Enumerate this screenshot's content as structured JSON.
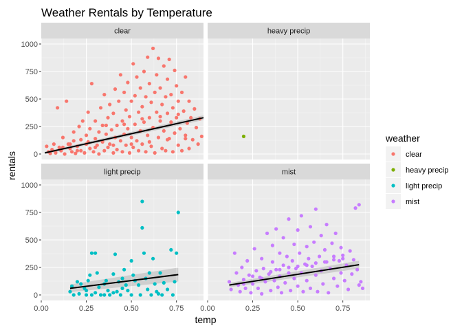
{
  "chart_data": {
    "type": "scatter",
    "title": "Weather Rentals by Temperature",
    "xlabel": "temp",
    "ylabel": "rentals",
    "xlim": [
      0.0,
      0.9
    ],
    "ylim": [
      -50,
      1050
    ],
    "x_ticks": [
      0.0,
      0.25,
      0.5,
      0.75
    ],
    "x_tick_labels": [
      "0.00",
      "0.25",
      "0.50",
      "0.75"
    ],
    "y_ticks": [
      0,
      250,
      500,
      750,
      1000
    ],
    "y_tick_labels": [
      "0",
      "250",
      "500",
      "750",
      "1000"
    ],
    "grid": true,
    "legend": {
      "title": "weather",
      "position": "right"
    },
    "facets": [
      {
        "label": "clear",
        "color": "#F8766D",
        "trend": {
          "x1": 0.02,
          "y1": 10,
          "x2": 0.9,
          "y2": 330,
          "band": 12
        },
        "points": [
          [
            0.03,
            70
          ],
          [
            0.04,
            20
          ],
          [
            0.05,
            5
          ],
          [
            0.06,
            40
          ],
          [
            0.07,
            90
          ],
          [
            0.08,
            10
          ],
          [
            0.09,
            420
          ],
          [
            0.1,
            60
          ],
          [
            0.11,
            30
          ],
          [
            0.12,
            150
          ],
          [
            0.13,
            0
          ],
          [
            0.14,
            480
          ],
          [
            0.15,
            90
          ],
          [
            0.16,
            50
          ],
          [
            0.17,
            20
          ],
          [
            0.18,
            120
          ],
          [
            0.18,
            200
          ],
          [
            0.19,
            5
          ],
          [
            0.2,
            70
          ],
          [
            0.21,
            250
          ],
          [
            0.22,
            30
          ],
          [
            0.22,
            130
          ],
          [
            0.23,
            300
          ],
          [
            0.24,
            10
          ],
          [
            0.25,
            170
          ],
          [
            0.25,
            90
          ],
          [
            0.26,
            380
          ],
          [
            0.27,
            50
          ],
          [
            0.27,
            230
          ],
          [
            0.28,
            640
          ],
          [
            0.29,
            20
          ],
          [
            0.3,
            140
          ],
          [
            0.3,
            300
          ],
          [
            0.31,
            80
          ],
          [
            0.32,
            200
          ],
          [
            0.32,
            0
          ],
          [
            0.33,
            420
          ],
          [
            0.34,
            110
          ],
          [
            0.34,
            260
          ],
          [
            0.35,
            30
          ],
          [
            0.35,
            540
          ],
          [
            0.36,
            180
          ],
          [
            0.37,
            60
          ],
          [
            0.37,
            330
          ],
          [
            0.38,
            90
          ],
          [
            0.38,
            450
          ],
          [
            0.39,
            220
          ],
          [
            0.4,
            10
          ],
          [
            0.4,
            370
          ],
          [
            0.41,
            150
          ],
          [
            0.41,
            590
          ],
          [
            0.42,
            40
          ],
          [
            0.42,
            260
          ],
          [
            0.43,
            480
          ],
          [
            0.44,
            120
          ],
          [
            0.44,
            720
          ],
          [
            0.45,
            300
          ],
          [
            0.45,
            20
          ],
          [
            0.46,
            180
          ],
          [
            0.46,
            560
          ],
          [
            0.47,
            80
          ],
          [
            0.47,
            400
          ],
          [
            0.48,
            230
          ],
          [
            0.48,
            650
          ],
          [
            0.49,
            10
          ],
          [
            0.49,
            340
          ],
          [
            0.5,
            150
          ],
          [
            0.5,
            480
          ],
          [
            0.51,
            820
          ],
          [
            0.51,
            60
          ],
          [
            0.52,
            270
          ],
          [
            0.52,
            530
          ],
          [
            0.53,
            120
          ],
          [
            0.53,
            700
          ],
          [
            0.54,
            380
          ],
          [
            0.54,
            30
          ],
          [
            0.55,
            210
          ],
          [
            0.55,
            600
          ],
          [
            0.56,
            90
          ],
          [
            0.56,
            430
          ],
          [
            0.57,
            750
          ],
          [
            0.57,
            290
          ],
          [
            0.58,
            20
          ],
          [
            0.58,
            520
          ],
          [
            0.59,
            170
          ],
          [
            0.59,
            880
          ],
          [
            0.6,
            330
          ],
          [
            0.6,
            640
          ],
          [
            0.61,
            70
          ],
          [
            0.61,
            470
          ],
          [
            0.62,
            960
          ],
          [
            0.62,
            240
          ],
          [
            0.63,
            560
          ],
          [
            0.63,
            10
          ],
          [
            0.64,
            380
          ],
          [
            0.64,
            720
          ],
          [
            0.65,
            150
          ],
          [
            0.65,
            870
          ],
          [
            0.66,
            300
          ],
          [
            0.66,
            600
          ],
          [
            0.67,
            50
          ],
          [
            0.67,
            450
          ],
          [
            0.68,
            800
          ],
          [
            0.68,
            210
          ],
          [
            0.69,
            520
          ],
          [
            0.69,
            30
          ],
          [
            0.7,
            370
          ],
          [
            0.7,
            680
          ],
          [
            0.71,
            140
          ],
          [
            0.71,
            860
          ],
          [
            0.72,
            290
          ],
          [
            0.72,
            540
          ],
          [
            0.73,
            20
          ],
          [
            0.73,
            420
          ],
          [
            0.74,
            760
          ],
          [
            0.74,
            190
          ],
          [
            0.75,
            620
          ],
          [
            0.75,
            330
          ],
          [
            0.76,
            80
          ],
          [
            0.76,
            480
          ],
          [
            0.77,
            230
          ],
          [
            0.78,
            560
          ],
          [
            0.78,
            30
          ],
          [
            0.79,
            390
          ],
          [
            0.8,
            170
          ],
          [
            0.8,
            700
          ],
          [
            0.81,
            280
          ],
          [
            0.82,
            50
          ],
          [
            0.82,
            480
          ],
          [
            0.83,
            330
          ],
          [
            0.84,
            130
          ],
          [
            0.85,
            410
          ],
          [
            0.86,
            240
          ],
          [
            0.87,
            90
          ],
          [
            0.88,
            320
          ],
          [
            0.89,
            160
          ],
          [
            0.2,
            30
          ],
          [
            0.3,
            60
          ],
          [
            0.4,
            80
          ],
          [
            0.5,
            90
          ],
          [
            0.6,
            110
          ],
          [
            0.7,
            130
          ],
          [
            0.8,
            140
          ],
          [
            0.36,
            260
          ],
          [
            0.46,
            270
          ],
          [
            0.56,
            320
          ],
          [
            0.66,
            340
          ],
          [
            0.76,
            360
          ],
          [
            0.26,
            110
          ],
          [
            0.16,
            90
          ],
          [
            0.12,
            60
          ]
        ]
      },
      {
        "label": "heavy precip",
        "color": "#7CAE00",
        "trend": null,
        "points": [
          [
            0.2,
            160
          ]
        ]
      },
      {
        "label": "light precip",
        "color": "#00BFC4",
        "trend": {
          "x1": 0.16,
          "y1": 60,
          "x2": 0.76,
          "y2": 185,
          "band": 35
        },
        "points": [
          [
            0.16,
            30
          ],
          [
            0.17,
            80
          ],
          [
            0.18,
            0
          ],
          [
            0.2,
            120
          ],
          [
            0.21,
            10
          ],
          [
            0.22,
            100
          ],
          [
            0.24,
            60
          ],
          [
            0.25,
            0
          ],
          [
            0.26,
            130
          ],
          [
            0.27,
            180
          ],
          [
            0.28,
            0
          ],
          [
            0.28,
            380
          ],
          [
            0.3,
            380
          ],
          [
            0.3,
            20
          ],
          [
            0.31,
            200
          ],
          [
            0.32,
            70
          ],
          [
            0.33,
            0
          ],
          [
            0.35,
            100
          ],
          [
            0.36,
            130
          ],
          [
            0.37,
            40
          ],
          [
            0.38,
            0
          ],
          [
            0.4,
            190
          ],
          [
            0.41,
            370
          ],
          [
            0.42,
            30
          ],
          [
            0.43,
            120
          ],
          [
            0.44,
            0
          ],
          [
            0.45,
            150
          ],
          [
            0.46,
            230
          ],
          [
            0.47,
            90
          ],
          [
            0.48,
            40
          ],
          [
            0.5,
            310
          ],
          [
            0.5,
            0
          ],
          [
            0.51,
            180
          ],
          [
            0.52,
            130
          ],
          [
            0.54,
            90
          ],
          [
            0.55,
            0
          ],
          [
            0.56,
            850
          ],
          [
            0.56,
            610
          ],
          [
            0.57,
            380
          ],
          [
            0.58,
            150
          ],
          [
            0.59,
            50
          ],
          [
            0.6,
            200
          ],
          [
            0.61,
            0
          ],
          [
            0.62,
            330
          ],
          [
            0.63,
            100
          ],
          [
            0.64,
            30
          ],
          [
            0.66,
            200
          ],
          [
            0.67,
            0
          ],
          [
            0.68,
            110
          ],
          [
            0.7,
            50
          ],
          [
            0.72,
            410
          ],
          [
            0.73,
            0
          ],
          [
            0.74,
            120
          ],
          [
            0.75,
            380
          ],
          [
            0.76,
            750
          ],
          [
            0.35,
            0
          ],
          [
            0.4,
            20
          ],
          [
            0.25,
            40
          ],
          [
            0.45,
            60
          ],
          [
            0.65,
            10
          ]
        ]
      },
      {
        "label": "mist",
        "color": "#C77CFF",
        "trend": {
          "x1": 0.12,
          "y1": 90,
          "x2": 0.84,
          "y2": 275,
          "band": 20
        },
        "points": [
          [
            0.12,
            120
          ],
          [
            0.13,
            50
          ],
          [
            0.15,
            380
          ],
          [
            0.16,
            200
          ],
          [
            0.17,
            90
          ],
          [
            0.18,
            30
          ],
          [
            0.19,
            250
          ],
          [
            0.2,
            140
          ],
          [
            0.21,
            60
          ],
          [
            0.22,
            310
          ],
          [
            0.23,
            180
          ],
          [
            0.24,
            20
          ],
          [
            0.25,
            100
          ],
          [
            0.26,
            420
          ],
          [
            0.27,
            220
          ],
          [
            0.28,
            60
          ],
          [
            0.29,
            160
          ],
          [
            0.3,
            330
          ],
          [
            0.3,
            10
          ],
          [
            0.31,
            240
          ],
          [
            0.32,
            120
          ],
          [
            0.33,
            560
          ],
          [
            0.34,
            190
          ],
          [
            0.35,
            40
          ],
          [
            0.36,
            300
          ],
          [
            0.36,
            450
          ],
          [
            0.37,
            130
          ],
          [
            0.38,
            230
          ],
          [
            0.38,
            600
          ],
          [
            0.39,
            70
          ],
          [
            0.4,
            380
          ],
          [
            0.4,
            170
          ],
          [
            0.41,
            20
          ],
          [
            0.42,
            270
          ],
          [
            0.42,
            520
          ],
          [
            0.43,
            110
          ],
          [
            0.44,
            350
          ],
          [
            0.45,
            200
          ],
          [
            0.45,
            690
          ],
          [
            0.46,
            40
          ],
          [
            0.47,
            310
          ],
          [
            0.48,
            460
          ],
          [
            0.48,
            150
          ],
          [
            0.49,
            240
          ],
          [
            0.5,
            590
          ],
          [
            0.5,
            80
          ],
          [
            0.51,
            380
          ],
          [
            0.52,
            200
          ],
          [
            0.52,
            720
          ],
          [
            0.53,
            30
          ],
          [
            0.54,
            280
          ],
          [
            0.55,
            440
          ],
          [
            0.55,
            130
          ],
          [
            0.56,
            330
          ],
          [
            0.57,
            620
          ],
          [
            0.57,
            60
          ],
          [
            0.58,
            260
          ],
          [
            0.59,
            480
          ],
          [
            0.6,
            180
          ],
          [
            0.6,
            780
          ],
          [
            0.61,
            30
          ],
          [
            0.62,
            350
          ],
          [
            0.63,
            540
          ],
          [
            0.63,
            220
          ],
          [
            0.64,
            100
          ],
          [
            0.65,
            410
          ],
          [
            0.66,
            300
          ],
          [
            0.66,
            640
          ],
          [
            0.67,
            20
          ],
          [
            0.68,
            240
          ],
          [
            0.69,
            470
          ],
          [
            0.7,
            150
          ],
          [
            0.7,
            350
          ],
          [
            0.71,
            560
          ],
          [
            0.72,
            80
          ],
          [
            0.73,
            310
          ],
          [
            0.74,
            200
          ],
          [
            0.74,
            430
          ],
          [
            0.75,
            360
          ],
          [
            0.76,
            130
          ],
          [
            0.77,
            270
          ],
          [
            0.78,
            50
          ],
          [
            0.79,
            400
          ],
          [
            0.8,
            190
          ],
          [
            0.81,
            320
          ],
          [
            0.82,
            790
          ],
          [
            0.83,
            230
          ],
          [
            0.84,
            820
          ],
          [
            0.84,
            90
          ],
          [
            0.85,
            120
          ],
          [
            0.86,
            60
          ],
          [
            0.2,
            100
          ],
          [
            0.3,
            150
          ],
          [
            0.4,
            230
          ],
          [
            0.5,
            260
          ],
          [
            0.6,
            290
          ],
          [
            0.7,
            320
          ],
          [
            0.25,
            170
          ],
          [
            0.35,
            210
          ],
          [
            0.45,
            250
          ],
          [
            0.55,
            270
          ],
          [
            0.65,
            300
          ],
          [
            0.75,
            330
          ]
        ]
      }
    ]
  }
}
